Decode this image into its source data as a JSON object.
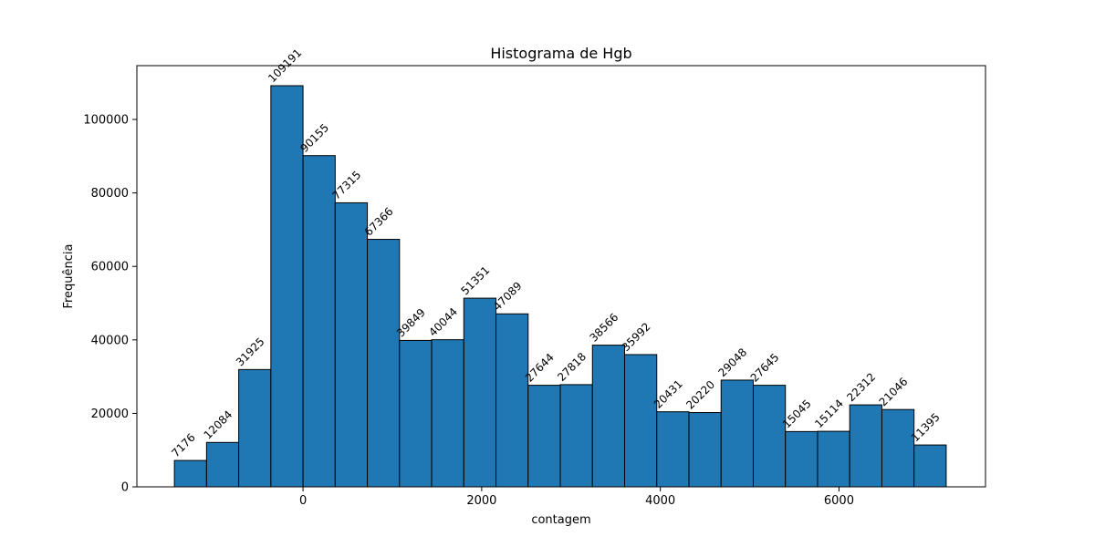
{
  "chart_data": {
    "type": "bar",
    "title": "Histograma de Hgb",
    "xlabel": "contagem",
    "ylabel": "Frequência",
    "x_range": [
      -1860,
      7640
    ],
    "y_range": [
      0,
      114650
    ],
    "bin_start": -1440,
    "bin_width": 360,
    "values": [
      7176,
      12084,
      31925,
      109191,
      90155,
      77315,
      67366,
      39849,
      40044,
      51351,
      47089,
      27644,
      27818,
      38566,
      35992,
      20431,
      20220,
      29048,
      27645,
      15045,
      15114,
      22312,
      21046,
      11395
    ],
    "x_ticks": [
      0,
      2000,
      4000,
      6000
    ],
    "y_ticks": [
      0,
      20000,
      40000,
      60000,
      80000,
      100000
    ],
    "grid": false,
    "legend": "none",
    "color": "#1f77b4"
  }
}
